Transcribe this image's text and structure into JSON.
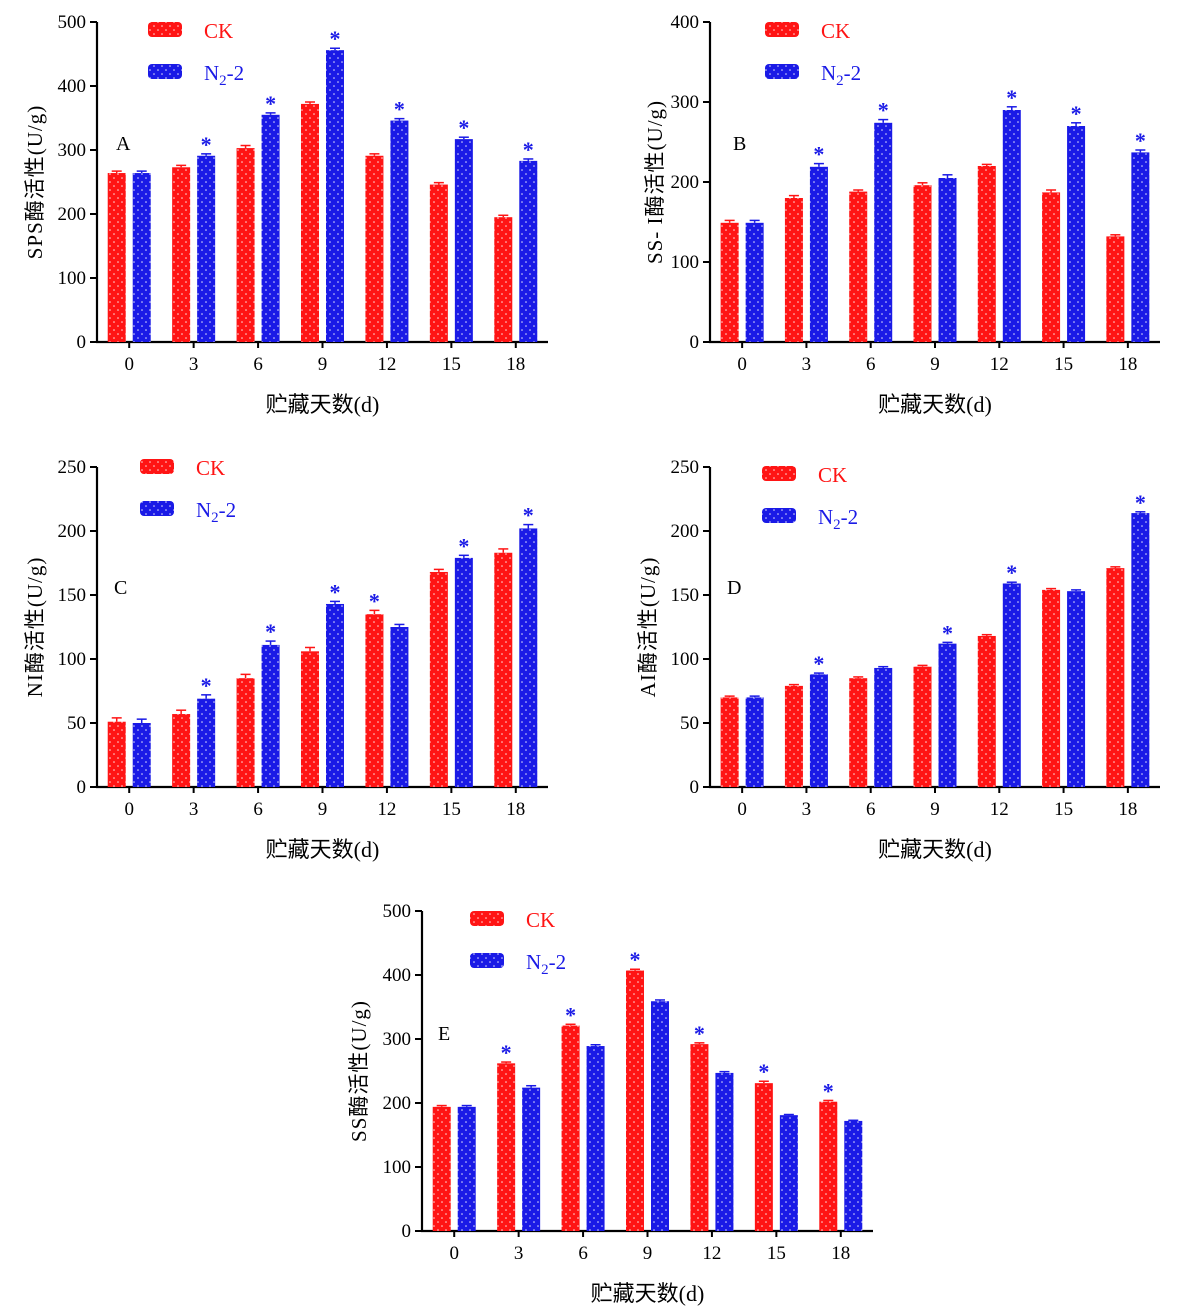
{
  "colors": {
    "ck": "#ff1414",
    "n2": "#1a1ae6",
    "dot": "#ffffff",
    "star": "#1a1ae6",
    "axis": "#000000"
  },
  "chart_data": [
    {
      "type": "bar",
      "panel": "A",
      "ylabel": "SPS酶活性(U/g)",
      "xlabel": "贮藏天数(d)",
      "categories": [
        "0",
        "3",
        "6",
        "9",
        "12",
        "15",
        "18"
      ],
      "ylim": [
        0,
        500
      ],
      "yticks": [
        0,
        100,
        200,
        300,
        400,
        500
      ],
      "series": [
        {
          "key": "ck",
          "name": "CK",
          "values": [
            264,
            273,
            303,
            372,
            291,
            246,
            195
          ],
          "errors": [
            3,
            3,
            4,
            3,
            3,
            3,
            3
          ],
          "sig": [
            false,
            false,
            false,
            false,
            false,
            false,
            false
          ]
        },
        {
          "key": "n2",
          "name": "N2-2",
          "values": [
            264,
            291,
            355,
            456,
            346,
            317,
            283
          ],
          "errors": [
            3,
            3,
            3,
            3,
            3,
            3,
            3
          ],
          "sig": [
            false,
            true,
            true,
            true,
            true,
            true,
            true
          ]
        }
      ],
      "legend": [
        "CK",
        "N",
        "2",
        "-2"
      ]
    },
    {
      "type": "bar",
      "panel": "B",
      "ylabel": "SS- I酶活性(U/g)",
      "xlabel": "贮藏天数(d)",
      "categories": [
        "0",
        "3",
        "6",
        "9",
        "12",
        "15",
        "18"
      ],
      "ylim": [
        0,
        400
      ],
      "yticks": [
        0,
        100,
        200,
        300,
        400
      ],
      "series": [
        {
          "key": "ck",
          "name": "CK",
          "values": [
            149,
            180,
            188,
            196,
            220,
            187,
            132
          ],
          "errors": [
            3,
            3,
            2,
            3,
            2,
            3,
            2
          ],
          "sig": [
            false,
            false,
            false,
            false,
            false,
            false,
            false
          ]
        },
        {
          "key": "n2",
          "name": "N2-2",
          "values": [
            149,
            219,
            274,
            205,
            290,
            270,
            237
          ],
          "errors": [
            3,
            4,
            4,
            4,
            4,
            4,
            3
          ],
          "sig": [
            false,
            true,
            true,
            false,
            true,
            true,
            true
          ]
        }
      ],
      "legend": [
        "CK",
        "N",
        "2",
        "-2"
      ]
    },
    {
      "type": "bar",
      "panel": "C",
      "ylabel": "NI酶活性(U/g)",
      "xlabel": "贮藏天数(d)",
      "categories": [
        "0",
        "3",
        "6",
        "9",
        "12",
        "15",
        "18"
      ],
      "ylim": [
        0,
        250
      ],
      "yticks": [
        0,
        50,
        100,
        150,
        200,
        250
      ],
      "series": [
        {
          "key": "ck",
          "name": "CK",
          "values": [
            51,
            57,
            85,
            106,
            135,
            168,
            183
          ],
          "errors": [
            3,
            3,
            3,
            3,
            3,
            2,
            3
          ],
          "sig": [
            false,
            false,
            false,
            false,
            true,
            false,
            false
          ]
        },
        {
          "key": "n2",
          "name": "N2-2",
          "values": [
            50,
            69,
            111,
            143,
            125,
            179,
            202
          ],
          "errors": [
            3,
            3,
            3,
            2,
            2,
            2,
            3
          ],
          "sig": [
            false,
            true,
            true,
            true,
            false,
            true,
            true
          ]
        }
      ],
      "legend": [
        "CK",
        "N",
        "2",
        "-2"
      ]
    },
    {
      "type": "bar",
      "panel": "D",
      "ylabel": "AI酶活性(U/g)",
      "xlabel": "贮藏天数(d)",
      "categories": [
        "0",
        "3",
        "6",
        "9",
        "12",
        "15",
        "18"
      ],
      "ylim": [
        0,
        250
      ],
      "yticks": [
        0,
        50,
        100,
        150,
        200,
        250
      ],
      "series": [
        {
          "key": "ck",
          "name": "CK",
          "values": [
            70,
            79,
            85,
            94,
            118,
            154,
            171
          ],
          "errors": [
            1,
            1,
            1,
            1,
            1,
            1,
            1
          ],
          "sig": [
            false,
            false,
            false,
            false,
            false,
            false,
            false
          ]
        },
        {
          "key": "n2",
          "name": "N2-2",
          "values": [
            70,
            88,
            93,
            112,
            159,
            153,
            214
          ],
          "errors": [
            1,
            1,
            1,
            1,
            1,
            1,
            1
          ],
          "sig": [
            false,
            true,
            false,
            true,
            true,
            false,
            true
          ]
        }
      ],
      "legend": [
        "CK",
        "N",
        "2",
        "-2"
      ]
    },
    {
      "type": "bar",
      "panel": "E",
      "ylabel": "SS酶活性(U/g)",
      "xlabel": "贮藏天数(d)",
      "categories": [
        "0",
        "3",
        "6",
        "9",
        "12",
        "15",
        "18"
      ],
      "ylim": [
        0,
        500
      ],
      "yticks": [
        0,
        100,
        200,
        300,
        400,
        500
      ],
      "series": [
        {
          "key": "ck",
          "name": "CK",
          "values": [
            194,
            262,
            321,
            407,
            292,
            231,
            202
          ],
          "errors": [
            2,
            2,
            2,
            2,
            2,
            3,
            2
          ],
          "sig": [
            false,
            true,
            true,
            true,
            true,
            true,
            true
          ]
        },
        {
          "key": "n2",
          "name": "N2-2",
          "values": [
            194,
            224,
            289,
            359,
            247,
            181,
            172
          ],
          "errors": [
            2,
            3,
            2,
            2,
            2,
            1,
            1
          ],
          "sig": [
            false,
            false,
            false,
            false,
            false,
            false,
            false
          ]
        }
      ],
      "legend": [
        "CK",
        "N",
        "2",
        "-2"
      ]
    }
  ]
}
